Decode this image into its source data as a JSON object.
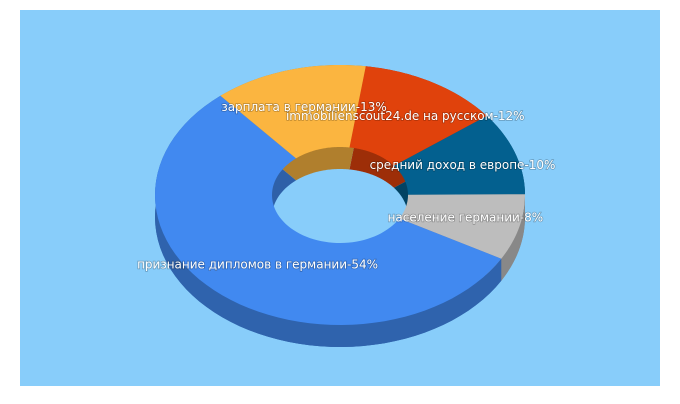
{
  "chart_data": {
    "type": "pie",
    "value_labels": [
      "immobilienscout24.de на русском-12%",
      "средний доход в европе-10%",
      "население германии-8%",
      "признание дипломов в германии-54%",
      "зарплата в германии-13%"
    ],
    "values": [
      12,
      10,
      8,
      54,
      13
    ],
    "colors": [
      "#e0420c",
      "#03608f",
      "#bdbdbd",
      "#4189f0",
      "#fbb540"
    ]
  }
}
